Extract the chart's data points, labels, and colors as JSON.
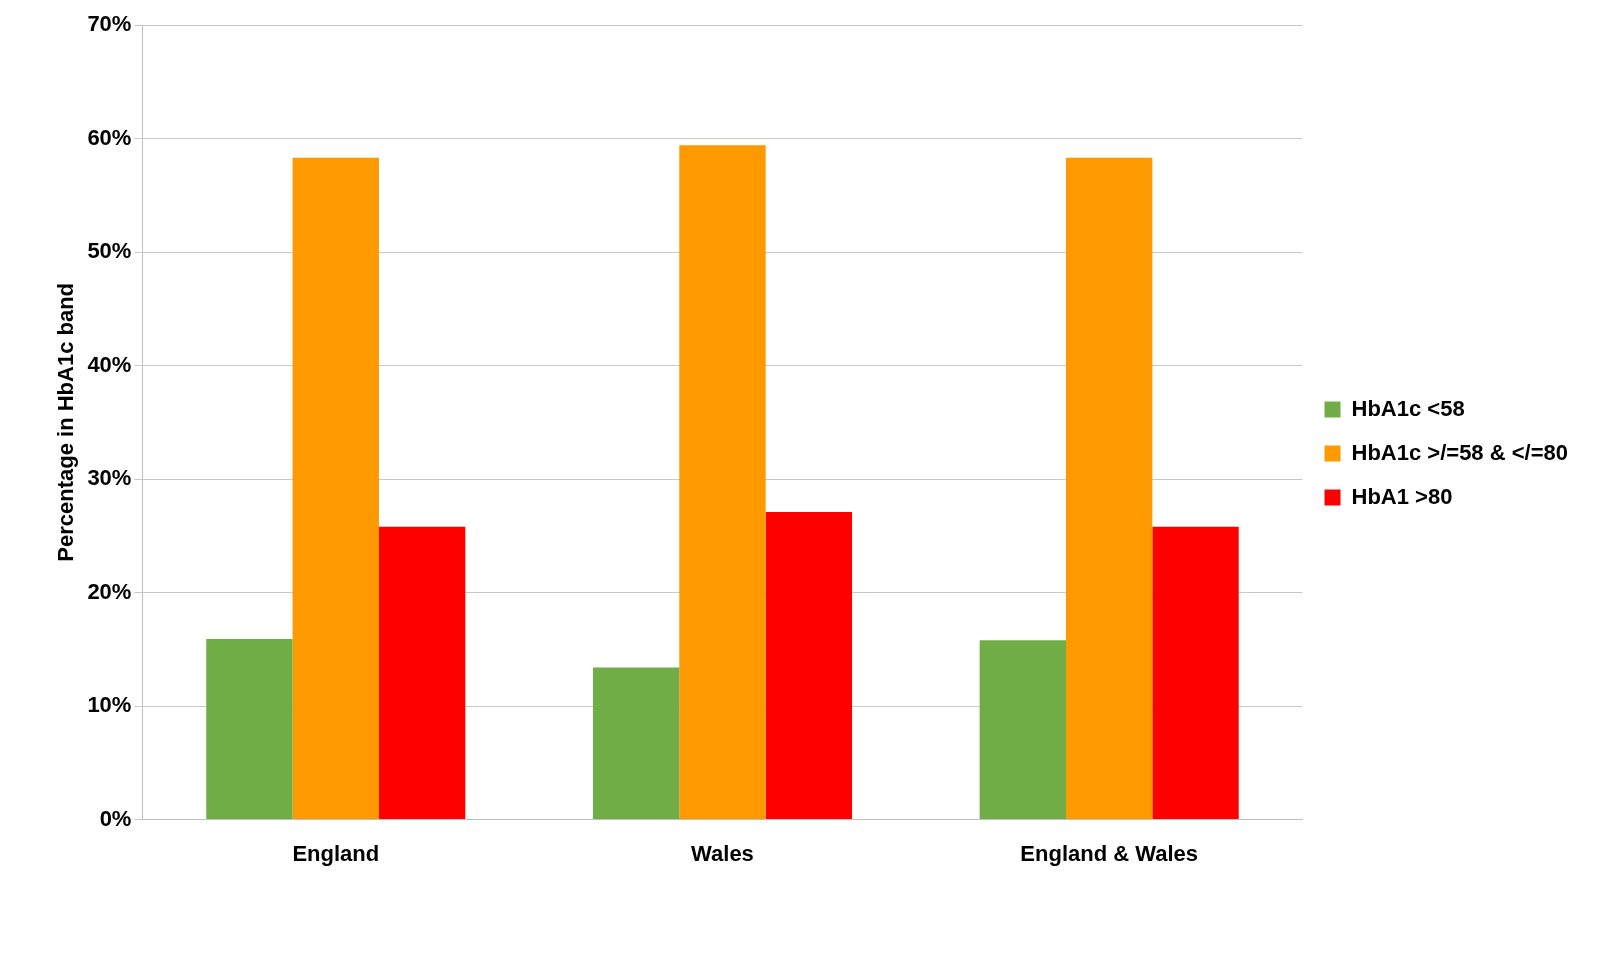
{
  "chart_data": {
    "type": "bar",
    "ylabel": "Percentage in HbA1c band",
    "categories": [
      "England",
      "Wales",
      "England & Wales"
    ],
    "series": [
      {
        "name": "HbA1c <58",
        "color": "#70ad47",
        "values": [
          15.9,
          13.4,
          15.8
        ]
      },
      {
        "name": "HbA1c >/=58 & </=80",
        "color": "#ff9900",
        "values": [
          58.3,
          59.4,
          58.3
        ]
      },
      {
        "name": "HbA1 >80",
        "color": "#ff0000",
        "values": [
          25.8,
          27.1,
          25.8
        ]
      }
    ],
    "ylim": [
      0,
      70
    ],
    "yticks": [
      {
        "value": 0,
        "label": "0%"
      },
      {
        "value": 10,
        "label": "10%"
      },
      {
        "value": 20,
        "label": "20%"
      },
      {
        "value": 30,
        "label": "30%"
      },
      {
        "value": 40,
        "label": "40%"
      },
      {
        "value": 50,
        "label": "50%"
      },
      {
        "value": 60,
        "label": "60%"
      },
      {
        "value": 70,
        "label": "70%"
      }
    ],
    "grid": "y",
    "legend": "right"
  }
}
